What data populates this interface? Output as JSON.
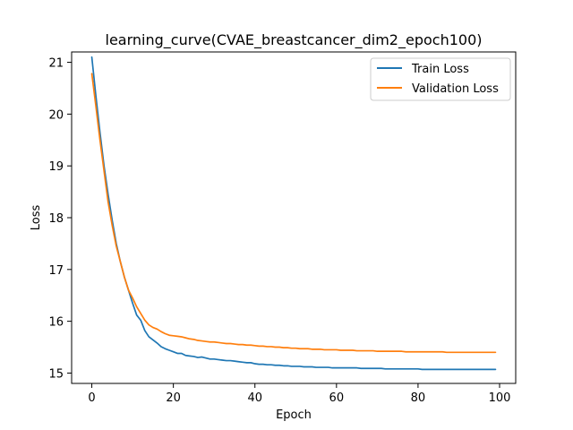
{
  "chart_data": {
    "type": "line",
    "title": "learning_curve(CVAE_breastcancer_dim2_epoch100)",
    "xlabel": "Epoch",
    "ylabel": "Loss",
    "xlim": [
      -4.95,
      103.95
    ],
    "ylim": [
      14.8,
      21.2
    ],
    "xticks": [
      0,
      20,
      40,
      60,
      80,
      100
    ],
    "yticks": [
      15,
      16,
      17,
      18,
      19,
      20,
      21
    ],
    "grid": false,
    "legend_position": "top-right",
    "series": [
      {
        "name": "Train Loss",
        "color": "#1f77b4",
        "values": [
          21.1,
          20.35,
          19.65,
          19.0,
          18.45,
          17.95,
          17.5,
          17.15,
          16.85,
          16.6,
          16.35,
          16.12,
          16.02,
          15.82,
          15.7,
          15.64,
          15.58,
          15.51,
          15.47,
          15.44,
          15.41,
          15.38,
          15.38,
          15.34,
          15.33,
          15.32,
          15.3,
          15.31,
          15.29,
          15.27,
          15.27,
          15.26,
          15.25,
          15.24,
          15.24,
          15.23,
          15.22,
          15.21,
          15.2,
          15.2,
          15.18,
          15.17,
          15.17,
          15.16,
          15.16,
          15.15,
          15.15,
          15.14,
          15.14,
          15.13,
          15.13,
          15.13,
          15.12,
          15.12,
          15.12,
          15.11,
          15.11,
          15.11,
          15.11,
          15.1,
          15.1,
          15.1,
          15.1,
          15.1,
          15.1,
          15.1,
          15.09,
          15.09,
          15.09,
          15.09,
          15.09,
          15.09,
          15.08,
          15.08,
          15.08,
          15.08,
          15.08,
          15.08,
          15.08,
          15.08,
          15.08,
          15.07,
          15.07,
          15.07,
          15.07,
          15.07,
          15.07,
          15.07,
          15.07,
          15.07,
          15.07,
          15.07,
          15.07,
          15.07,
          15.07,
          15.07,
          15.07,
          15.07,
          15.07,
          15.07
        ]
      },
      {
        "name": "Validation Loss",
        "color": "#ff7f0e",
        "values": [
          20.78,
          20.15,
          19.5,
          18.9,
          18.3,
          17.85,
          17.45,
          17.15,
          16.85,
          16.6,
          16.45,
          16.28,
          16.15,
          16.02,
          15.93,
          15.88,
          15.85,
          15.8,
          15.76,
          15.73,
          15.72,
          15.71,
          15.7,
          15.68,
          15.66,
          15.65,
          15.63,
          15.62,
          15.61,
          15.6,
          15.6,
          15.59,
          15.58,
          15.57,
          15.57,
          15.56,
          15.55,
          15.55,
          15.54,
          15.54,
          15.53,
          15.52,
          15.52,
          15.51,
          15.51,
          15.5,
          15.5,
          15.49,
          15.49,
          15.48,
          15.48,
          15.47,
          15.47,
          15.47,
          15.46,
          15.46,
          15.46,
          15.45,
          15.45,
          15.45,
          15.45,
          15.44,
          15.44,
          15.44,
          15.44,
          15.43,
          15.43,
          15.43,
          15.43,
          15.43,
          15.42,
          15.42,
          15.42,
          15.42,
          15.42,
          15.42,
          15.42,
          15.41,
          15.41,
          15.41,
          15.41,
          15.41,
          15.41,
          15.41,
          15.41,
          15.41,
          15.41,
          15.4,
          15.4,
          15.4,
          15.4,
          15.4,
          15.4,
          15.4,
          15.4,
          15.4,
          15.4,
          15.4,
          15.4,
          15.4
        ]
      }
    ]
  }
}
